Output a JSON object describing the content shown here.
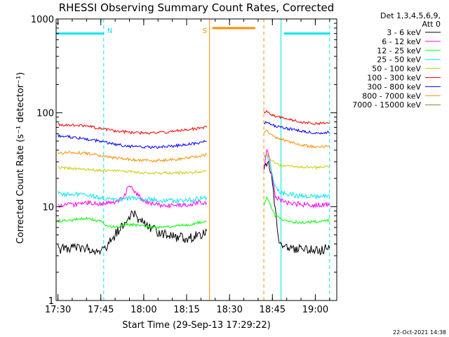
{
  "chart_data": {
    "type": "line",
    "title": "RHESSI Observing Summary Count Rates, Corrected",
    "xlabel": "Start Time (29-Sep-13 17:29:22)",
    "ylabel": "Corrected Count Rate (s⁻¹ detector⁻¹)",
    "xscale": "time",
    "yscale": "log",
    "xlim": [
      "17:29:22",
      "19:07:30"
    ],
    "ylim": [
      1,
      1000
    ],
    "x_ticks": [
      "17:30",
      "17:45",
      "18:00",
      "18:15",
      "18:30",
      "18:45",
      "19:00"
    ],
    "y_ticks": [
      "1",
      "10",
      "100",
      "1000"
    ],
    "grid": false,
    "legend_position": "right",
    "legend_header": [
      "Det 1,3,4,5,6,9,",
      "Att 0"
    ],
    "footer_timestamp": "22-Oct-2021 14:38",
    "data_gaps": [
      [
        "18:22:30",
        "18:41:30"
      ]
    ],
    "bars": [
      {
        "flag": "",
        "color": "#00e5ee",
        "y": 700,
        "start": "17:29:22",
        "end": "17:46:00"
      },
      {
        "flag": "N",
        "color": "#00e5ee",
        "y": 700,
        "start": "17:46:00",
        "end": "17:46:00"
      },
      {
        "flag": "S",
        "color": "#ff8c00",
        "y": 800,
        "start": "18:24:00",
        "end": "18:39:00"
      },
      {
        "flag": "",
        "color": "#00e5ee",
        "y": 700,
        "start": "18:49:00",
        "end": "19:05:00"
      }
    ],
    "markers": [
      {
        "label": "N",
        "time": "17:46:00",
        "color": "#00e5ee"
      },
      {
        "label": "S",
        "time": "18:23:00",
        "color": "#ff8c00"
      }
    ],
    "vlines": [
      {
        "time": "17:46:00",
        "color": "#00e5ee",
        "style": "dashed"
      },
      {
        "time": "18:23:00",
        "color": "#ff8c00",
        "style": "solid"
      },
      {
        "time": "18:42:00",
        "color": "#ff8c00",
        "style": "dashed"
      },
      {
        "time": "18:48:00",
        "color": "#00e5ee",
        "style": "solid"
      },
      {
        "time": "19:05:00",
        "color": "#00e5ee",
        "style": "dashed"
      }
    ],
    "series": [
      {
        "name": "3 - 6 keV",
        "color": "#000000",
        "segments": [
          [
            [
              "17:30",
              3.5
            ],
            [
              "17:35",
              3.7
            ],
            [
              "17:40",
              3.6
            ],
            [
              "17:45",
              3.4
            ],
            [
              "17:47",
              3.8
            ],
            [
              "17:50",
              5.0
            ],
            [
              "17:53",
              6.5
            ],
            [
              "17:56",
              8.5
            ],
            [
              "17:58",
              7.5
            ],
            [
              "18:00",
              6.5
            ],
            [
              "18:03",
              5.8
            ],
            [
              "18:06",
              5.2
            ],
            [
              "18:10",
              4.8
            ],
            [
              "18:15",
              4.6
            ],
            [
              "18:20",
              5.0
            ],
            [
              "18:22",
              5.5
            ]
          ],
          [
            [
              "18:42",
              22.0
            ],
            [
              "18:43",
              30.0
            ],
            [
              "18:44",
              26.0
            ],
            [
              "18:45",
              18.0
            ],
            [
              "18:46",
              9.0
            ],
            [
              "18:47",
              5.0
            ],
            [
              "18:48",
              3.8
            ],
            [
              "18:50",
              3.6
            ],
            [
              "18:55",
              3.5
            ],
            [
              "19:00",
              3.4
            ],
            [
              "19:05",
              3.6
            ]
          ]
        ]
      },
      {
        "name": "6 - 12 keV",
        "color": "#ff00ff",
        "segments": [
          [
            [
              "17:30",
              10.0
            ],
            [
              "17:35",
              10.5
            ],
            [
              "17:40",
              11.0
            ],
            [
              "17:45",
              10.8
            ],
            [
              "17:50",
              11.0
            ],
            [
              "17:53",
              12.5
            ],
            [
              "17:55",
              17.5
            ],
            [
              "17:57",
              14.0
            ],
            [
              "18:00",
              11.5
            ],
            [
              "18:05",
              10.5
            ],
            [
              "18:10",
              10.2
            ],
            [
              "18:15",
              10.5
            ],
            [
              "18:20",
              11.0
            ],
            [
              "18:22",
              11.0
            ]
          ],
          [
            [
              "18:42",
              25.0
            ],
            [
              "18:43",
              40.0
            ],
            [
              "18:44",
              32.0
            ],
            [
              "18:45",
              20.0
            ],
            [
              "18:46",
              13.0
            ],
            [
              "18:48",
              11.5
            ],
            [
              "18:50",
              11.0
            ],
            [
              "18:55",
              10.5
            ],
            [
              "19:00",
              10.4
            ],
            [
              "19:05",
              10.6
            ]
          ]
        ]
      },
      {
        "name": "12 - 25 keV",
        "color": "#00ff00",
        "segments": [
          [
            [
              "17:30",
              7.0
            ],
            [
              "17:35",
              7.2
            ],
            [
              "17:40",
              7.5
            ],
            [
              "17:45",
              7.0
            ],
            [
              "17:47",
              6.3
            ],
            [
              "17:50",
              6.0
            ],
            [
              "17:55",
              6.5
            ],
            [
              "18:00",
              6.2
            ],
            [
              "18:05",
              6.0
            ],
            [
              "18:10",
              6.2
            ],
            [
              "18:15",
              6.4
            ],
            [
              "18:20",
              6.8
            ],
            [
              "18:22",
              7.0
            ]
          ],
          [
            [
              "18:42",
              10.0
            ],
            [
              "18:43",
              13.0
            ],
            [
              "18:44",
              11.0
            ],
            [
              "18:46",
              8.0
            ],
            [
              "18:48",
              7.4
            ],
            [
              "18:50",
              7.0
            ],
            [
              "18:55",
              6.8
            ],
            [
              "19:00",
              6.9
            ],
            [
              "19:05",
              7.2
            ]
          ]
        ]
      },
      {
        "name": "25 - 50 keV",
        "color": "#00e5ee",
        "segments": [
          [
            [
              "17:30",
              14.0
            ],
            [
              "17:33",
              13.5
            ],
            [
              "17:36",
              13.8
            ],
            [
              "17:40",
              13.2
            ],
            [
              "17:45",
              12.5
            ],
            [
              "17:50",
              12.0
            ],
            [
              "17:55",
              12.2
            ],
            [
              "18:00",
              12.0
            ],
            [
              "18:05",
              11.8
            ],
            [
              "18:10",
              11.6
            ],
            [
              "18:15",
              11.8
            ],
            [
              "18:20",
              12.2
            ],
            [
              "18:22",
              12.5
            ]
          ],
          [
            [
              "18:42",
              32.0
            ],
            [
              "18:43",
              35.0
            ],
            [
              "18:44",
              30.0
            ],
            [
              "18:45",
              22.0
            ],
            [
              "18:46",
              16.0
            ],
            [
              "18:48",
              14.0
            ],
            [
              "18:50",
              13.5
            ],
            [
              "18:55",
              13.0
            ],
            [
              "19:00",
              12.8
            ],
            [
              "19:05",
              13.0
            ]
          ]
        ]
      },
      {
        "name": "50 - 100 keV",
        "color": "#cccc00",
        "segments": [
          [
            [
              "17:30",
              26.0
            ],
            [
              "17:35",
              25.5
            ],
            [
              "17:40",
              25.0
            ],
            [
              "17:45",
              24.5
            ],
            [
              "17:50",
              24.0
            ],
            [
              "17:55",
              23.5
            ],
            [
              "18:00",
              23.0
            ],
            [
              "18:05",
              22.8
            ],
            [
              "18:10",
              22.8
            ],
            [
              "18:15",
              23.0
            ],
            [
              "18:20",
              23.5
            ],
            [
              "18:22",
              24.0
            ]
          ],
          [
            [
              "18:42",
              33.0
            ],
            [
              "18:43",
              36.0
            ],
            [
              "18:44",
              34.0
            ],
            [
              "18:45",
              30.0
            ],
            [
              "18:47",
              28.0
            ],
            [
              "18:50",
              27.0
            ],
            [
              "18:55",
              26.5
            ],
            [
              "19:00",
              26.0
            ],
            [
              "19:05",
              26.5
            ]
          ]
        ]
      },
      {
        "name": "100 - 300 keV",
        "color": "#ff0000",
        "segments": [
          [
            [
              "17:30",
              75.0
            ],
            [
              "17:35",
              74.0
            ],
            [
              "17:40",
              72.0
            ],
            [
              "17:45",
              68.0
            ],
            [
              "17:50",
              64.0
            ],
            [
              "17:55",
              62.0
            ],
            [
              "18:00",
              61.0
            ],
            [
              "18:05",
              61.0
            ],
            [
              "18:10",
              63.0
            ],
            [
              "18:15",
              66.0
            ],
            [
              "18:20",
              69.0
            ],
            [
              "18:22",
              70.0
            ]
          ],
          [
            [
              "18:42",
              100.0
            ],
            [
              "18:43",
              105.0
            ],
            [
              "18:44",
              98.0
            ],
            [
              "18:46",
              92.0
            ],
            [
              "18:50",
              86.0
            ],
            [
              "18:55",
              80.0
            ],
            [
              "19:00",
              77.0
            ],
            [
              "19:05",
              79.0
            ]
          ]
        ]
      },
      {
        "name": "300 - 800 keV",
        "color": "#0000ff",
        "segments": [
          [
            [
              "17:30",
              57.0
            ],
            [
              "17:35",
              55.0
            ],
            [
              "17:40",
              52.0
            ],
            [
              "17:45",
              50.0
            ],
            [
              "17:50",
              46.0
            ],
            [
              "17:55",
              44.0
            ],
            [
              "18:00",
              43.0
            ],
            [
              "18:05",
              43.0
            ],
            [
              "18:10",
              44.0
            ],
            [
              "18:15",
              46.0
            ],
            [
              "18:20",
              48.0
            ],
            [
              "18:22",
              50.0
            ]
          ],
          [
            [
              "18:42",
              75.0
            ],
            [
              "18:43",
              80.0
            ],
            [
              "18:44",
              76.0
            ],
            [
              "18:46",
              72.0
            ],
            [
              "18:50",
              68.0
            ],
            [
              "18:55",
              64.0
            ],
            [
              "19:00",
              61.0
            ],
            [
              "19:05",
              62.0
            ]
          ]
        ]
      },
      {
        "name": "800 - 7000 keV",
        "color": "#ff8c00",
        "segments": [
          [
            [
              "17:30",
              37.0
            ],
            [
              "17:35",
              38.0
            ],
            [
              "17:40",
              37.0
            ],
            [
              "17:45",
              35.0
            ],
            [
              "17:50",
              33.0
            ],
            [
              "17:55",
              32.0
            ],
            [
              "18:00",
              31.0
            ],
            [
              "18:05",
              31.0
            ],
            [
              "18:10",
              31.5
            ],
            [
              "18:15",
              33.0
            ],
            [
              "18:20",
              35.0
            ],
            [
              "18:22",
              36.0
            ]
          ],
          [
            [
              "18:42",
              60.0
            ],
            [
              "18:43",
              65.0
            ],
            [
              "18:44",
              60.0
            ],
            [
              "18:46",
              55.0
            ],
            [
              "18:50",
              50.0
            ],
            [
              "18:55",
              46.0
            ],
            [
              "19:00",
              43.0
            ],
            [
              "19:05",
              44.0
            ]
          ]
        ]
      },
      {
        "name": "7000 - 15000 keV",
        "color": "#6b8e23",
        "segments": []
      }
    ]
  }
}
